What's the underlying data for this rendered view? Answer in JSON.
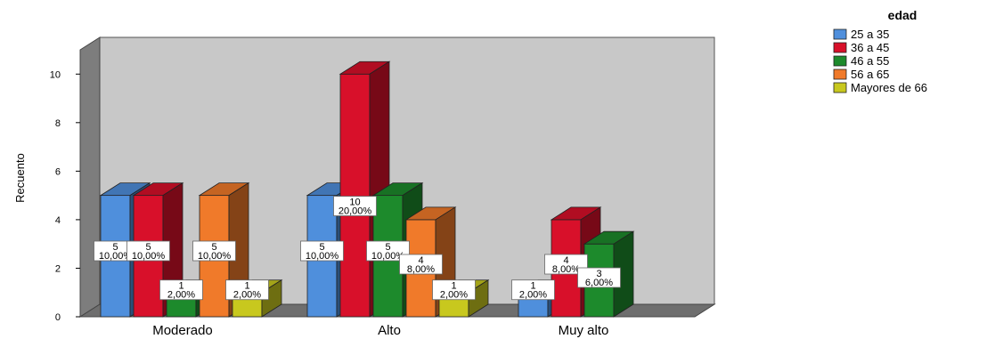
{
  "chart_data": {
    "type": "bar",
    "title": "",
    "xlabel": "",
    "ylabel": "Recuento",
    "ylim": [
      0,
      11
    ],
    "yticks": [
      0,
      2,
      4,
      6,
      8,
      10
    ],
    "categories": [
      "Moderado",
      "Alto",
      "Muy alto"
    ],
    "legend": {
      "title": "edad",
      "position": "top-right"
    },
    "series": [
      {
        "name": "25 a 35",
        "color": "#4f8fdc",
        "values": [
          5,
          5,
          1
        ],
        "labels": [
          "5 10,00%",
          "5 10,00%",
          "1 2,00%"
        ]
      },
      {
        "name": "36 a 45",
        "color": "#d8102a",
        "values": [
          5,
          10,
          4
        ],
        "labels": [
          "5 10,00%",
          "10 20,00%",
          "4 8,00%"
        ]
      },
      {
        "name": "46 a 55",
        "color": "#1d8a2c",
        "values": [
          1,
          5,
          3
        ],
        "labels": [
          "1 2,00%",
          "5 10,00%",
          "3 6,00%"
        ]
      },
      {
        "name": "56 a 65",
        "color": "#f07a2a",
        "values": [
          5,
          4,
          null
        ],
        "labels": [
          "5 10,00%",
          "4 8,00%",
          null
        ]
      },
      {
        "name": "Mayores de 66",
        "color": "#c8c81e",
        "values": [
          1,
          1,
          null
        ],
        "labels": [
          "1 2,00%",
          "1 2,00%",
          null
        ]
      }
    ]
  }
}
